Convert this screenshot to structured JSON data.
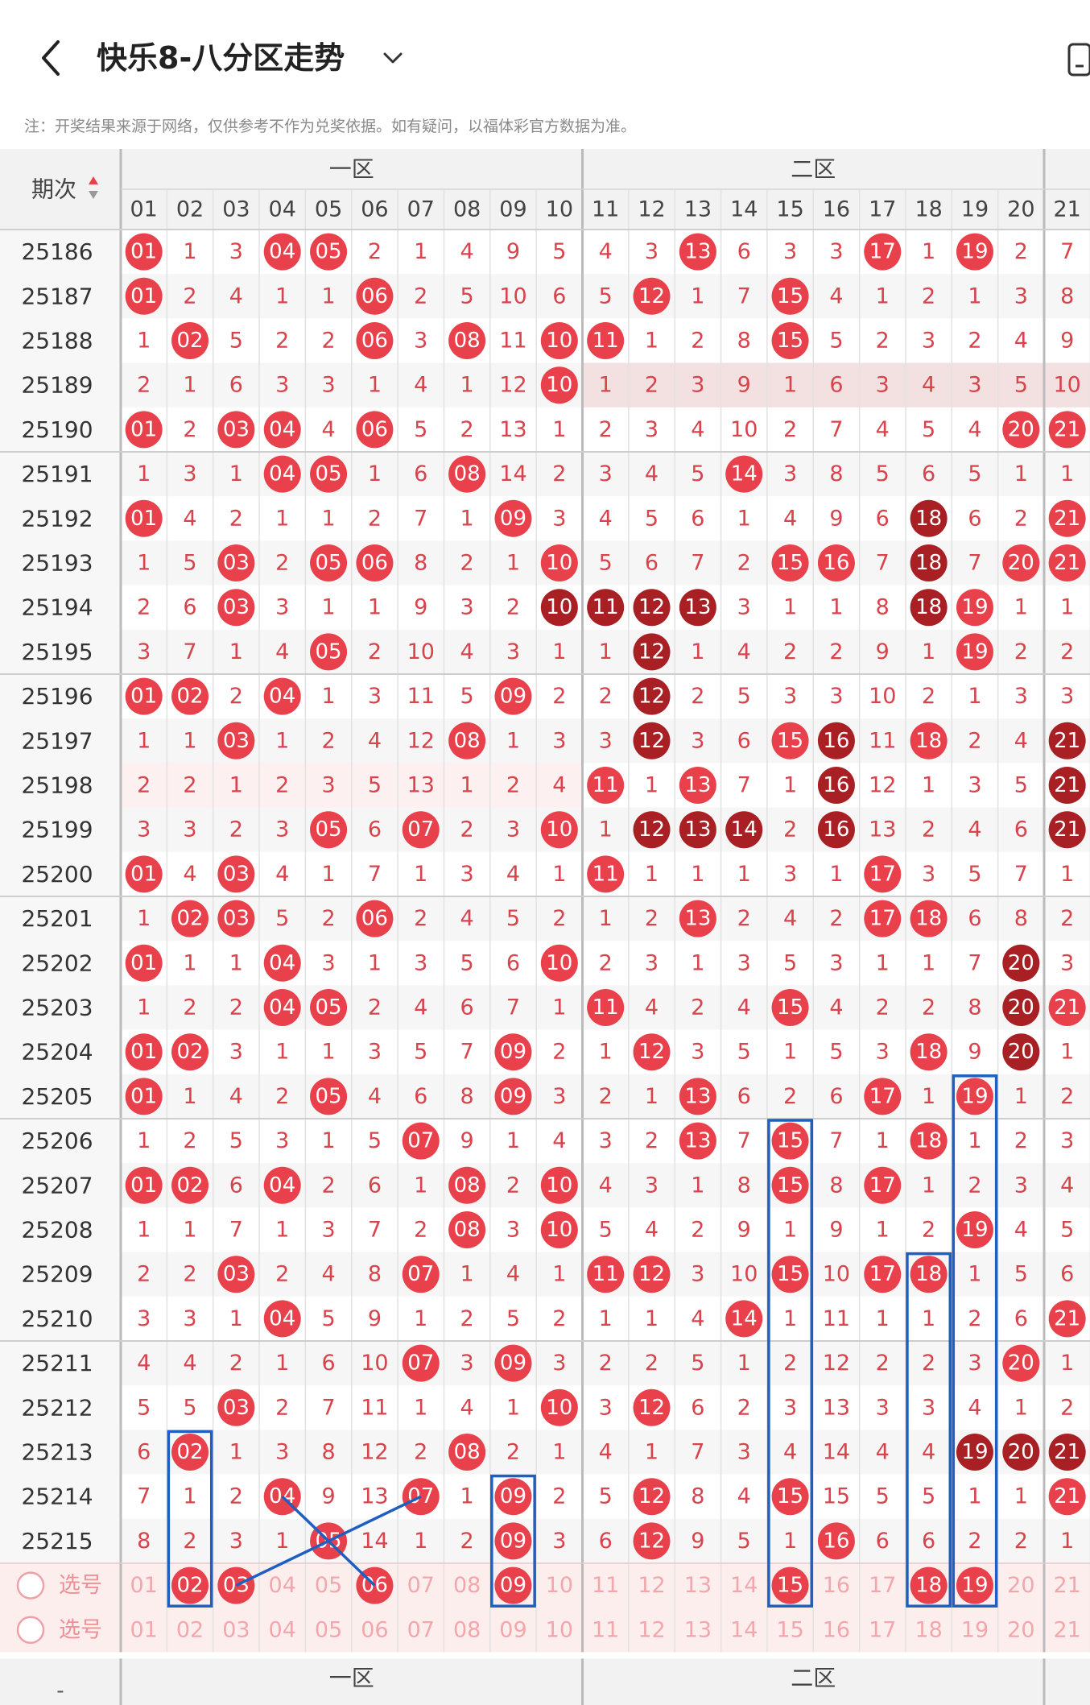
{
  "header": {
    "title": "快乐8-八分区走势",
    "back_icon": "chevron-left-icon",
    "dropdown_icon": "chevron-down-icon",
    "right_icon": "phone-icon"
  },
  "note": "注：开奖结果来源于网络，仅供参考不作为兑奖依据。如有疑问，以福体彩官方数据为准。",
  "table": {
    "period_header": "期次",
    "sort_icon": "sort-icon",
    "zones": [
      "一区",
      "二区"
    ],
    "numbers": [
      "01",
      "02",
      "03",
      "04",
      "05",
      "06",
      "07",
      "08",
      "09",
      "10",
      "11",
      "12",
      "13",
      "14",
      "15",
      "16",
      "17",
      "18",
      "19",
      "20",
      "21"
    ],
    "select_label": "选号",
    "footer_left": "-",
    "rows": [
      {
        "period": "25186",
        "cells": [
          "01",
          "1",
          "3",
          "04",
          "05",
          "2",
          "1",
          "4",
          "9",
          "5",
          "4",
          "3",
          "13",
          "6",
          "3",
          "3",
          "17",
          "1",
          "19",
          "2",
          "7"
        ]
      },
      {
        "period": "25187",
        "cells": [
          "01",
          "2",
          "4",
          "1",
          "1",
          "06",
          "2",
          "5",
          "10",
          "6",
          "5",
          "12",
          "1",
          "7",
          "15",
          "4",
          "1",
          "2",
          "1",
          "3",
          "8"
        ]
      },
      {
        "period": "25188",
        "cells": [
          "1",
          "02",
          "5",
          "2",
          "2",
          "06",
          "3",
          "08",
          "11",
          "10",
          "11",
          "1",
          "2",
          "8",
          "15",
          "5",
          "2",
          "3",
          "2",
          "4",
          "9"
        ]
      },
      {
        "period": "25189",
        "cells": [
          "2",
          "1",
          "6",
          "3",
          "3",
          "1",
          "4",
          "1",
          "12",
          "10",
          "1",
          "2",
          "3",
          "9",
          "1",
          "6",
          "3",
          "4",
          "3",
          "5",
          "10"
        ]
      },
      {
        "period": "25190",
        "cells": [
          "01",
          "2",
          "03",
          "04",
          "4",
          "06",
          "5",
          "2",
          "13",
          "1",
          "2",
          "3",
          "4",
          "10",
          "2",
          "7",
          "4",
          "5",
          "4",
          "20",
          "21"
        ]
      },
      {
        "period": "25191",
        "cells": [
          "1",
          "3",
          "1",
          "04",
          "05",
          "1",
          "6",
          "08",
          "14",
          "2",
          "3",
          "4",
          "5",
          "14",
          "3",
          "8",
          "5",
          "6",
          "5",
          "1",
          "1"
        ]
      },
      {
        "period": "25192",
        "cells": [
          "01",
          "4",
          "2",
          "1",
          "1",
          "2",
          "7",
          "1",
          "09",
          "3",
          "4",
          "5",
          "6",
          "1",
          "4",
          "9",
          "6",
          "18",
          "6",
          "2",
          "21"
        ]
      },
      {
        "period": "25193",
        "cells": [
          "1",
          "5",
          "03",
          "2",
          "05",
          "06",
          "8",
          "2",
          "1",
          "10",
          "5",
          "6",
          "7",
          "2",
          "15",
          "16",
          "7",
          "18",
          "7",
          "20",
          "21"
        ]
      },
      {
        "period": "25194",
        "cells": [
          "2",
          "6",
          "03",
          "3",
          "1",
          "1",
          "9",
          "3",
          "2",
          "10",
          "11",
          "12",
          "13",
          "3",
          "1",
          "1",
          "8",
          "18",
          "19",
          "1",
          "1"
        ]
      },
      {
        "period": "25195",
        "cells": [
          "3",
          "7",
          "1",
          "4",
          "05",
          "2",
          "10",
          "4",
          "3",
          "1",
          "1",
          "12",
          "1",
          "4",
          "2",
          "2",
          "9",
          "1",
          "19",
          "2",
          "2"
        ]
      },
      {
        "period": "25196",
        "cells": [
          "01",
          "02",
          "2",
          "04",
          "1",
          "3",
          "11",
          "5",
          "09",
          "2",
          "2",
          "12",
          "2",
          "5",
          "3",
          "3",
          "10",
          "2",
          "1",
          "3",
          "3"
        ]
      },
      {
        "period": "25197",
        "cells": [
          "1",
          "1",
          "03",
          "1",
          "2",
          "4",
          "12",
          "08",
          "1",
          "3",
          "3",
          "12",
          "3",
          "6",
          "15",
          "16",
          "11",
          "18",
          "2",
          "4",
          "21"
        ]
      },
      {
        "period": "25198",
        "cells": [
          "2",
          "2",
          "1",
          "2",
          "3",
          "5",
          "13",
          "1",
          "2",
          "4",
          "11",
          "1",
          "13",
          "7",
          "1",
          "16",
          "12",
          "1",
          "3",
          "5",
          "21"
        ]
      },
      {
        "period": "25199",
        "cells": [
          "3",
          "3",
          "2",
          "3",
          "05",
          "6",
          "07",
          "2",
          "3",
          "10",
          "1",
          "12",
          "13",
          "14",
          "2",
          "16",
          "13",
          "2",
          "4",
          "6",
          "21"
        ]
      },
      {
        "period": "25200",
        "cells": [
          "01",
          "4",
          "03",
          "4",
          "1",
          "7",
          "1",
          "3",
          "4",
          "1",
          "11",
          "1",
          "1",
          "1",
          "3",
          "1",
          "17",
          "3",
          "5",
          "7",
          "1"
        ]
      },
      {
        "period": "25201",
        "cells": [
          "1",
          "02",
          "03",
          "5",
          "2",
          "06",
          "2",
          "4",
          "5",
          "2",
          "1",
          "2",
          "13",
          "2",
          "4",
          "2",
          "17",
          "18",
          "6",
          "8",
          "2"
        ]
      },
      {
        "period": "25202",
        "cells": [
          "01",
          "1",
          "1",
          "04",
          "3",
          "1",
          "3",
          "5",
          "6",
          "10",
          "2",
          "3",
          "1",
          "3",
          "5",
          "3",
          "1",
          "1",
          "7",
          "20",
          "3"
        ]
      },
      {
        "period": "25203",
        "cells": [
          "1",
          "2",
          "2",
          "04",
          "05",
          "2",
          "4",
          "6",
          "7",
          "1",
          "11",
          "4",
          "2",
          "4",
          "15",
          "4",
          "2",
          "2",
          "8",
          "20",
          "21"
        ]
      },
      {
        "period": "25204",
        "cells": [
          "01",
          "02",
          "3",
          "1",
          "1",
          "3",
          "5",
          "7",
          "09",
          "2",
          "1",
          "12",
          "3",
          "5",
          "1",
          "5",
          "3",
          "18",
          "9",
          "20",
          "1"
        ]
      },
      {
        "period": "25205",
        "cells": [
          "01",
          "1",
          "4",
          "2",
          "05",
          "4",
          "6",
          "8",
          "09",
          "3",
          "2",
          "1",
          "13",
          "6",
          "2",
          "6",
          "17",
          "1",
          "19",
          "1",
          "2"
        ]
      },
      {
        "period": "25206",
        "cells": [
          "1",
          "2",
          "5",
          "3",
          "1",
          "5",
          "07",
          "9",
          "1",
          "4",
          "3",
          "2",
          "13",
          "7",
          "15",
          "7",
          "1",
          "18",
          "1",
          "2",
          "3"
        ]
      },
      {
        "period": "25207",
        "cells": [
          "01",
          "02",
          "6",
          "04",
          "2",
          "6",
          "1",
          "08",
          "2",
          "10",
          "4",
          "3",
          "1",
          "8",
          "15",
          "8",
          "17",
          "1",
          "2",
          "3",
          "4"
        ]
      },
      {
        "period": "25208",
        "cells": [
          "1",
          "1",
          "7",
          "1",
          "3",
          "7",
          "2",
          "08",
          "3",
          "10",
          "5",
          "4",
          "2",
          "9",
          "1",
          "9",
          "1",
          "2",
          "19",
          "4",
          "5"
        ]
      },
      {
        "period": "25209",
        "cells": [
          "2",
          "2",
          "03",
          "2",
          "4",
          "8",
          "07",
          "1",
          "4",
          "1",
          "11",
          "12",
          "3",
          "10",
          "15",
          "10",
          "17",
          "18",
          "1",
          "5",
          "6"
        ]
      },
      {
        "period": "25210",
        "cells": [
          "3",
          "3",
          "1",
          "04",
          "5",
          "9",
          "1",
          "2",
          "5",
          "2",
          "1",
          "1",
          "4",
          "14",
          "1",
          "11",
          "1",
          "1",
          "2",
          "6",
          "21"
        ]
      },
      {
        "period": "25211",
        "cells": [
          "4",
          "4",
          "2",
          "1",
          "6",
          "10",
          "07",
          "3",
          "09",
          "3",
          "2",
          "2",
          "5",
          "1",
          "2",
          "12",
          "2",
          "2",
          "3",
          "20",
          "1"
        ]
      },
      {
        "period": "25212",
        "cells": [
          "5",
          "5",
          "03",
          "2",
          "7",
          "11",
          "1",
          "4",
          "1",
          "10",
          "3",
          "12",
          "6",
          "2",
          "3",
          "13",
          "3",
          "3",
          "4",
          "1",
          "2"
        ]
      },
      {
        "period": "25213",
        "cells": [
          "6",
          "02",
          "1",
          "3",
          "8",
          "12",
          "2",
          "08",
          "2",
          "1",
          "4",
          "1",
          "7",
          "3",
          "4",
          "14",
          "4",
          "4",
          "19",
          "20",
          "21"
        ]
      },
      {
        "period": "25214",
        "cells": [
          "7",
          "1",
          "2",
          "04",
          "9",
          "13",
          "07",
          "1",
          "09",
          "2",
          "5",
          "12",
          "8",
          "4",
          "15",
          "15",
          "5",
          "5",
          "1",
          "1",
          "21"
        ]
      },
      {
        "period": "25215",
        "cells": [
          "8",
          "2",
          "3",
          "1",
          "05",
          "14",
          "1",
          "2",
          "09",
          "3",
          "6",
          "12",
          "9",
          "5",
          "1",
          "16",
          "6",
          "6",
          "2",
          "2",
          "1"
        ]
      }
    ],
    "select_rows": [
      {
        "selected": [
          "02",
          "03",
          "06",
          "09",
          "15",
          "18",
          "19"
        ]
      },
      {
        "selected": []
      }
    ]
  },
  "colors": {
    "ball_red": "#e8414c",
    "ball_dark": "#a81f24",
    "number_text": "#d8434c",
    "highlight_box": "#1f5fbf",
    "header_bg": "#f2f2f2",
    "select_bg": "#fdeeee"
  }
}
